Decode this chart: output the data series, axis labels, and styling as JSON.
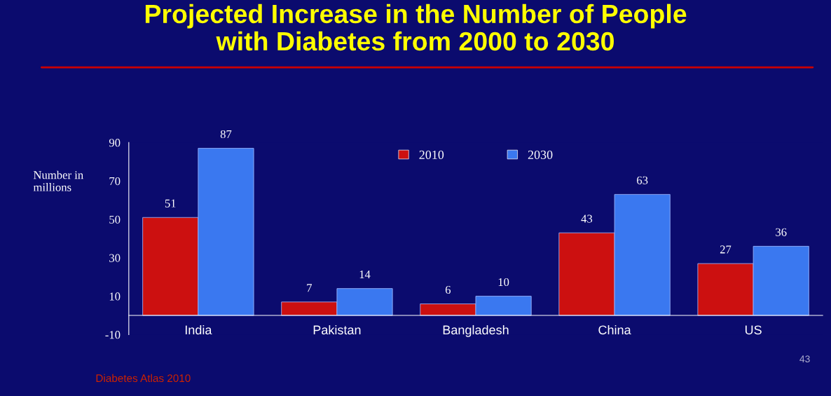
{
  "chart_data": {
    "type": "bar",
    "title": "Projected Increase in the Number of People\nwith Diabetes from 2000 to 2030",
    "ylabel": "Number in\nmillions",
    "categories": [
      "India",
      "Pakistan",
      "Bangladesh",
      "China",
      "US"
    ],
    "series": [
      {
        "name": "2010",
        "color": "#cc1010",
        "values": [
          51,
          7,
          6,
          43,
          27
        ]
      },
      {
        "name": "2030",
        "color": "#3a78f0",
        "values": [
          87,
          14,
          10,
          63,
          36
        ]
      }
    ],
    "ylim": [
      -10,
      90
    ],
    "yticks": [
      -10,
      10,
      30,
      50,
      70,
      90
    ],
    "data_labels": true,
    "legend": "top",
    "grid": false,
    "annotations": [
      "Diabetes Atlas 2010",
      "43"
    ]
  }
}
